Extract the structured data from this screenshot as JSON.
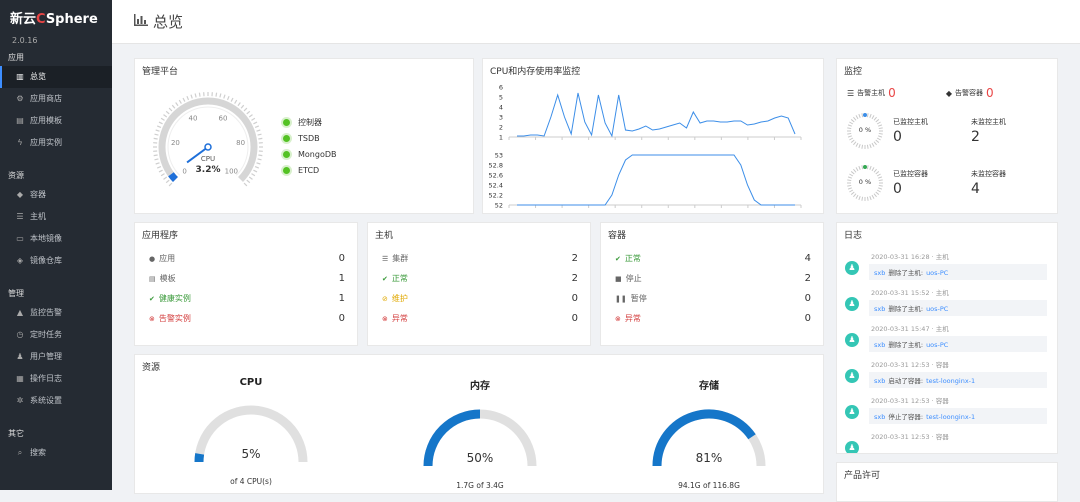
{
  "app": {
    "brand_prefix": "新云",
    "brand_red": "C",
    "brand_suffix": "Sphere",
    "version": "2.0.16"
  },
  "sidebar": {
    "sections": [
      {
        "title": "应用",
        "items": [
          {
            "label": "总览",
            "icon": "bar-chart-icon",
            "active": true
          },
          {
            "label": "应用商店",
            "icon": "gear-icon"
          },
          {
            "label": "应用模板",
            "icon": "file-icon"
          },
          {
            "label": "应用实例",
            "icon": "bolt-icon"
          }
        ]
      },
      {
        "title": "资源",
        "items": [
          {
            "label": "容器",
            "icon": "cube-icon"
          },
          {
            "label": "主机",
            "icon": "list-icon"
          },
          {
            "label": "本地镜像",
            "icon": "drive-icon"
          },
          {
            "label": "镜像仓库",
            "icon": "cubes-icon"
          }
        ]
      },
      {
        "title": "管理",
        "items": [
          {
            "label": "监控告警",
            "icon": "bell-icon"
          },
          {
            "label": "定时任务",
            "icon": "clock-icon"
          },
          {
            "label": "用户管理",
            "icon": "users-icon"
          },
          {
            "label": "操作日志",
            "icon": "log-icon"
          },
          {
            "label": "系统设置",
            "icon": "cogs-icon"
          }
        ]
      },
      {
        "title": "其它",
        "items": [
          {
            "label": "搜索",
            "icon": "search-icon"
          }
        ]
      }
    ]
  },
  "header": {
    "title": "总览",
    "icon": "bar-chart-icon"
  },
  "platform": {
    "title": "管理平台",
    "gauge": {
      "label": "CPU",
      "value_text": "3.2%",
      "value": 3.2,
      "ticks": [
        "0",
        "20",
        "40",
        "60",
        "80",
        "100"
      ]
    },
    "legend": [
      "控制器",
      "TSDB",
      "MongoDB",
      "ETCD"
    ]
  },
  "cpu_mem": {
    "title": "CPU和内存使用率监控",
    "chart_data": [
      {
        "type": "line",
        "ylim": [
          1,
          6
        ],
        "yticks": [
          "1",
          "2",
          "3",
          "4",
          "5",
          "6"
        ],
        "values": [
          1.1,
          1.1,
          1.2,
          1.2,
          1.1,
          3,
          5.2,
          3,
          1.3,
          5.4,
          2.5,
          1.2,
          5.2,
          2.4,
          1.1,
          5.2,
          1.7,
          1.6,
          1.8,
          2.1,
          1.7,
          1.8,
          2,
          2.2,
          2.4,
          1.9,
          3.5,
          2.4,
          2.6,
          2.6,
          2.5,
          2.5,
          2.6,
          2.6,
          2.2,
          2.3,
          2.5,
          2.6,
          2.9,
          3.1,
          2.9,
          1.3
        ]
      },
      {
        "type": "line",
        "ylim": [
          52,
          53
        ],
        "yticks": [
          "52",
          "52.2",
          "52.4",
          "52.6",
          "52.8",
          "53"
        ],
        "values": [
          52,
          52,
          52,
          52,
          52,
          52,
          52,
          52,
          52,
          52,
          52,
          52,
          52,
          52,
          52.2,
          52.6,
          52.9,
          53,
          53,
          53,
          53,
          53,
          53,
          53,
          53,
          53,
          53,
          53,
          53,
          53,
          53,
          53,
          53,
          52.8,
          52.4,
          52.1,
          52,
          52,
          52,
          52,
          52,
          52
        ]
      }
    ]
  },
  "monitor": {
    "title": "监控",
    "alert_host_label": "告警主机",
    "alert_host_count": "0",
    "alert_container_label": "告警容器",
    "alert_container_count": "0",
    "host": {
      "percent": "0 %",
      "monitored_label": "已监控主机",
      "monitored": "0",
      "unmonitored_label": "未监控主机",
      "unmonitored": "2"
    },
    "container": {
      "percent": "0 %",
      "monitored_label": "已监控容器",
      "monitored": "0",
      "unmonitored_label": "未监控容器",
      "unmonitored": "4"
    }
  },
  "apps": {
    "title": "应用程序",
    "rows": [
      {
        "label": "应用",
        "value": "0",
        "color": "#666",
        "icon": "info-icon"
      },
      {
        "label": "模板",
        "value": "1",
        "color": "#666",
        "icon": "file-icon"
      },
      {
        "label": "健康实例",
        "value": "1",
        "color": "#3a9a3a",
        "icon": "check-circle-icon"
      },
      {
        "label": "告警实例",
        "value": "0",
        "color": "#d33c3c",
        "icon": "alert-circle-icon"
      }
    ]
  },
  "hosts": {
    "title": "主机",
    "rows": [
      {
        "label": "集群",
        "value": "2",
        "color": "#666",
        "icon": "server-icon"
      },
      {
        "label": "正常",
        "value": "2",
        "color": "#3a9a3a",
        "icon": "check-circle-icon"
      },
      {
        "label": "维护",
        "value": "0",
        "color": "#e0a800",
        "icon": "wrench-icon"
      },
      {
        "label": "异常",
        "value": "0",
        "color": "#d33c3c",
        "icon": "alert-circle-icon"
      }
    ]
  },
  "containers": {
    "title": "容器",
    "rows": [
      {
        "label": "正常",
        "value": "4",
        "color": "#3a9a3a",
        "icon": "check-circle-icon"
      },
      {
        "label": "停止",
        "value": "2",
        "color": "#666",
        "icon": "stop-icon"
      },
      {
        "label": "暂停",
        "value": "0",
        "color": "#666",
        "icon": "pause-icon"
      },
      {
        "label": "异常",
        "value": "0",
        "color": "#d33c3c",
        "icon": "alert-circle-icon"
      }
    ]
  },
  "resources": {
    "title": "资源",
    "items": [
      {
        "title": "CPU",
        "percent_text": "5%",
        "percent": 5,
        "sub": "of 4 CPU(s)"
      },
      {
        "title": "内存",
        "percent_text": "50%",
        "percent": 50,
        "sub": "1.7G of 3.4G"
      },
      {
        "title": "存储",
        "percent_text": "81%",
        "percent": 81,
        "sub": "94.1G of 116.8G"
      }
    ]
  },
  "logs": {
    "title": "日志",
    "entries": [
      {
        "time": "2020-03-31 16:28 · 主机",
        "user": "sxb",
        "action": "删除了主机:",
        "target": "uos-PC"
      },
      {
        "time": "2020-03-31 15:52 · 主机",
        "user": "sxb",
        "action": "删除了主机:",
        "target": "uos-PC"
      },
      {
        "time": "2020-03-31 15:47 · 主机",
        "user": "sxb",
        "action": "删除了主机:",
        "target": "uos-PC"
      },
      {
        "time": "2020-03-31 12:53 · 容器",
        "user": "sxb",
        "action": "启动了容器:",
        "target": "test-loonginx-1"
      },
      {
        "time": "2020-03-31 12:53 · 容器",
        "user": "sxb",
        "action": "停止了容器:",
        "target": "test-loonginx-1"
      },
      {
        "time": "2020-03-31 12:53 · 容器",
        "user": "",
        "action": "",
        "target": ""
      }
    ]
  },
  "license": {
    "title": "产品许可"
  }
}
